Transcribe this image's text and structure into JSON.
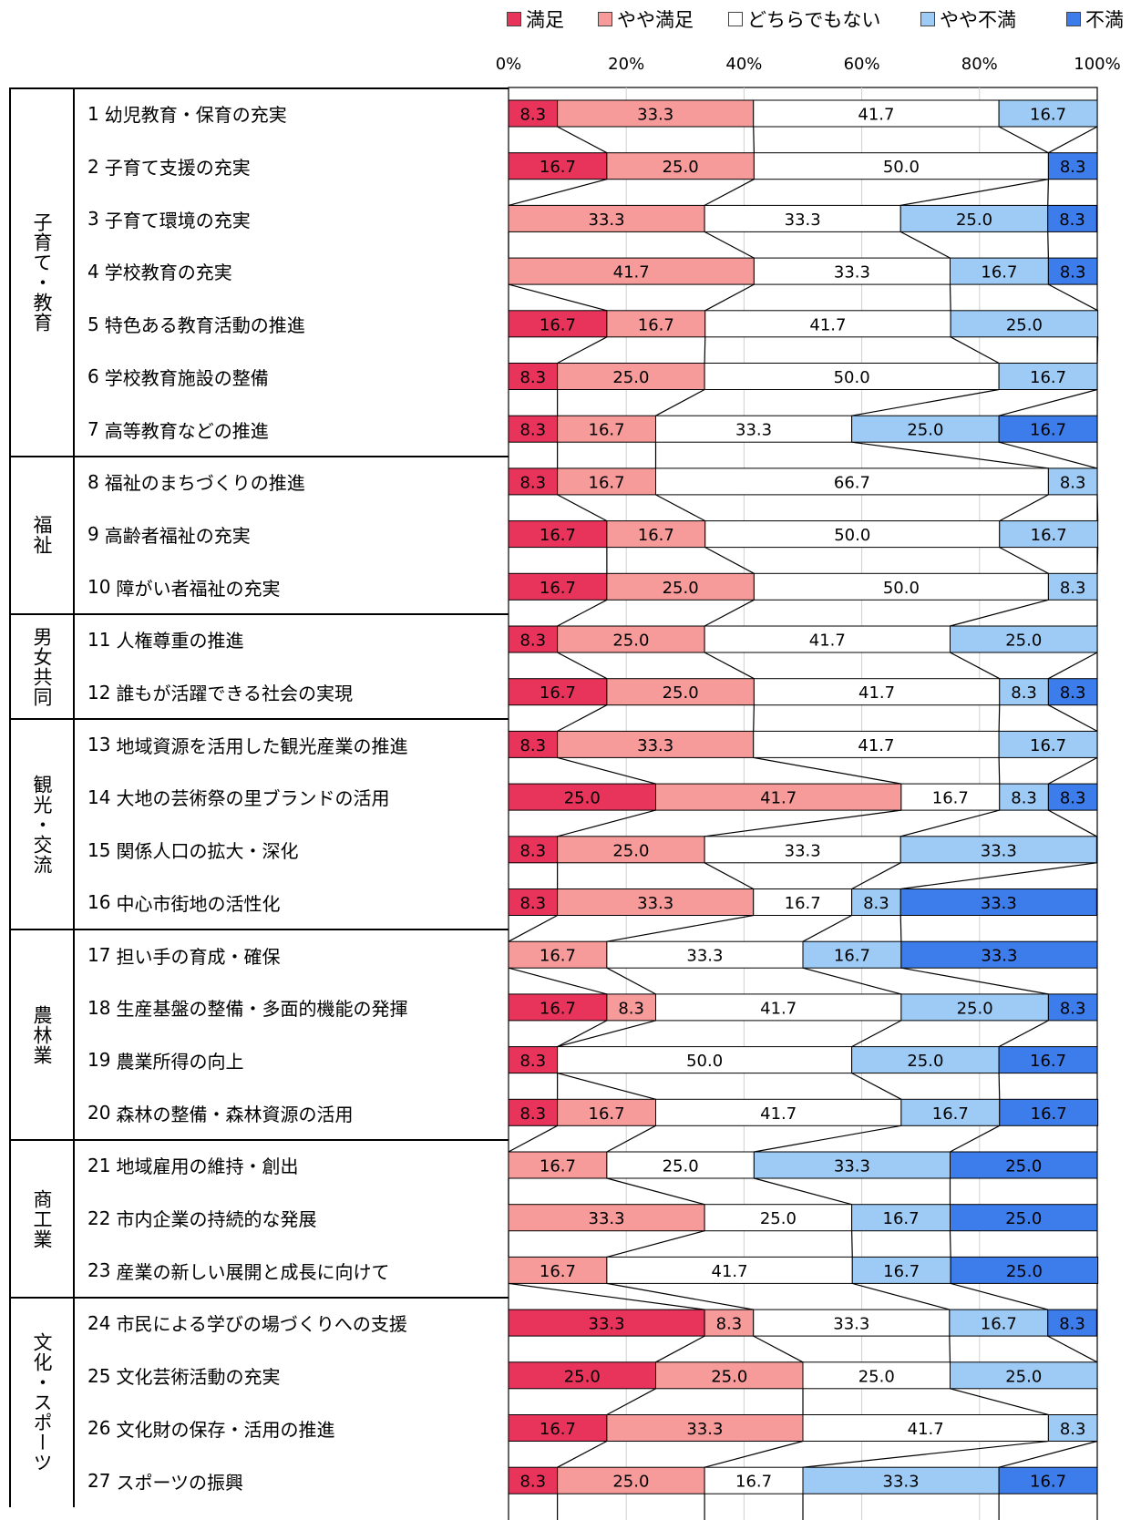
{
  "legend": [
    {
      "label": "満足",
      "color": "#E8335A"
    },
    {
      "label": "やや満足",
      "color": "#F79A9A"
    },
    {
      "label": "どちらでもない",
      "color": "#FFFFFF"
    },
    {
      "label": "やや不満",
      "color": "#9DCBF5"
    },
    {
      "label": "不満",
      "color": "#3D7DEB"
    }
  ],
  "chart_data": {
    "type": "bar",
    "orientation": "horizontal",
    "stacked": "100%",
    "x_ticks": [
      "0%",
      "20%",
      "40%",
      "60%",
      "80%",
      "100%"
    ],
    "xlim": [
      0,
      100
    ],
    "grid": true,
    "legend_position": "top",
    "groups": [
      {
        "name": "子育て・教育",
        "start": 0,
        "count": 7
      },
      {
        "name": "福祉",
        "start": 7,
        "count": 3
      },
      {
        "name": "男女共同",
        "start": 10,
        "count": 2
      },
      {
        "name": "観光・交流",
        "start": 12,
        "count": 4
      },
      {
        "name": "農林業",
        "start": 16,
        "count": 4
      },
      {
        "name": "商工業",
        "start": 20,
        "count": 3
      },
      {
        "name": "文化・スポーツ",
        "start": 23,
        "count": 4
      }
    ],
    "categories": [
      {
        "num": "1",
        "label": "幼児教育・保育の充実"
      },
      {
        "num": "2",
        "label": "子育て支援の充実"
      },
      {
        "num": "3",
        "label": "子育て環境の充実"
      },
      {
        "num": "4",
        "label": "学校教育の充実"
      },
      {
        "num": "5",
        "label": "特色ある教育活動の推進"
      },
      {
        "num": "6",
        "label": "学校教育施設の整備"
      },
      {
        "num": "7",
        "label": "高等教育などの推進"
      },
      {
        "num": "8",
        "label": "福祉のまちづくりの推進"
      },
      {
        "num": "9",
        "label": "高齢者福祉の充実"
      },
      {
        "num": "10",
        "label": "障がい者福祉の充実"
      },
      {
        "num": "11",
        "label": "人権尊重の推進"
      },
      {
        "num": "12",
        "label": "誰もが活躍できる社会の実現"
      },
      {
        "num": "13",
        "label": "地域資源を活用した観光産業の推進"
      },
      {
        "num": "14",
        "label": "大地の芸術祭の里ブランドの活用"
      },
      {
        "num": "15",
        "label": "関係人口の拡大・深化"
      },
      {
        "num": "16",
        "label": "中心市街地の活性化"
      },
      {
        "num": "17",
        "label": "担い手の育成・確保"
      },
      {
        "num": "18",
        "label": "生産基盤の整備・多面的機能の発揮"
      },
      {
        "num": "19",
        "label": "農業所得の向上"
      },
      {
        "num": "20",
        "label": "森林の整備・森林資源の活用"
      },
      {
        "num": "21",
        "label": "地域雇用の維持・創出"
      },
      {
        "num": "22",
        "label": "市内企業の持続的な発展"
      },
      {
        "num": "23",
        "label": "産業の新しい展開と成長に向けて"
      },
      {
        "num": "24",
        "label": "市民による学びの場づくりへの支援"
      },
      {
        "num": "25",
        "label": "文化芸術活動の充実"
      },
      {
        "num": "26",
        "label": "文化財の保存・活用の推進"
      },
      {
        "num": "27",
        "label": "スポーツの振興"
      }
    ],
    "series": [
      {
        "name": "満足",
        "values": [
          8.3,
          16.7,
          0,
          0,
          16.7,
          8.3,
          8.3,
          8.3,
          16.7,
          16.7,
          8.3,
          16.7,
          8.3,
          25.0,
          8.3,
          8.3,
          0,
          16.7,
          8.3,
          8.3,
          0,
          0,
          0,
          33.3,
          25.0,
          16.7,
          8.3
        ]
      },
      {
        "name": "やや満足",
        "values": [
          33.3,
          25.0,
          33.3,
          41.7,
          16.7,
          25.0,
          16.7,
          16.7,
          16.7,
          25.0,
          25.0,
          25.0,
          33.3,
          41.7,
          25.0,
          33.3,
          16.7,
          8.3,
          0,
          16.7,
          16.7,
          33.3,
          16.7,
          8.3,
          25.0,
          33.3,
          25.0
        ]
      },
      {
        "name": "どちらでもない",
        "values": [
          41.7,
          50.0,
          33.3,
          33.3,
          41.7,
          50.0,
          33.3,
          66.7,
          50.0,
          50.0,
          41.7,
          41.7,
          41.7,
          16.7,
          33.3,
          16.7,
          33.3,
          41.7,
          50.0,
          41.7,
          25.0,
          25.0,
          41.7,
          33.3,
          25.0,
          41.7,
          16.7
        ]
      },
      {
        "name": "やや不満",
        "values": [
          16.7,
          0,
          25.0,
          16.7,
          25.0,
          16.7,
          25.0,
          8.3,
          16.7,
          8.3,
          25.0,
          8.3,
          16.7,
          8.3,
          33.3,
          8.3,
          16.7,
          25.0,
          25.0,
          16.7,
          33.3,
          16.7,
          16.7,
          16.7,
          25.0,
          8.3,
          33.3
        ]
      },
      {
        "name": "不満",
        "values": [
          0,
          8.3,
          8.3,
          8.3,
          0,
          0,
          16.7,
          0,
          0,
          0,
          0,
          8.3,
          0,
          8.3,
          0,
          33.3,
          33.3,
          8.3,
          16.7,
          16.7,
          25.0,
          25.0,
          25.0,
          8.3,
          0,
          0,
          16.7
        ]
      }
    ]
  }
}
